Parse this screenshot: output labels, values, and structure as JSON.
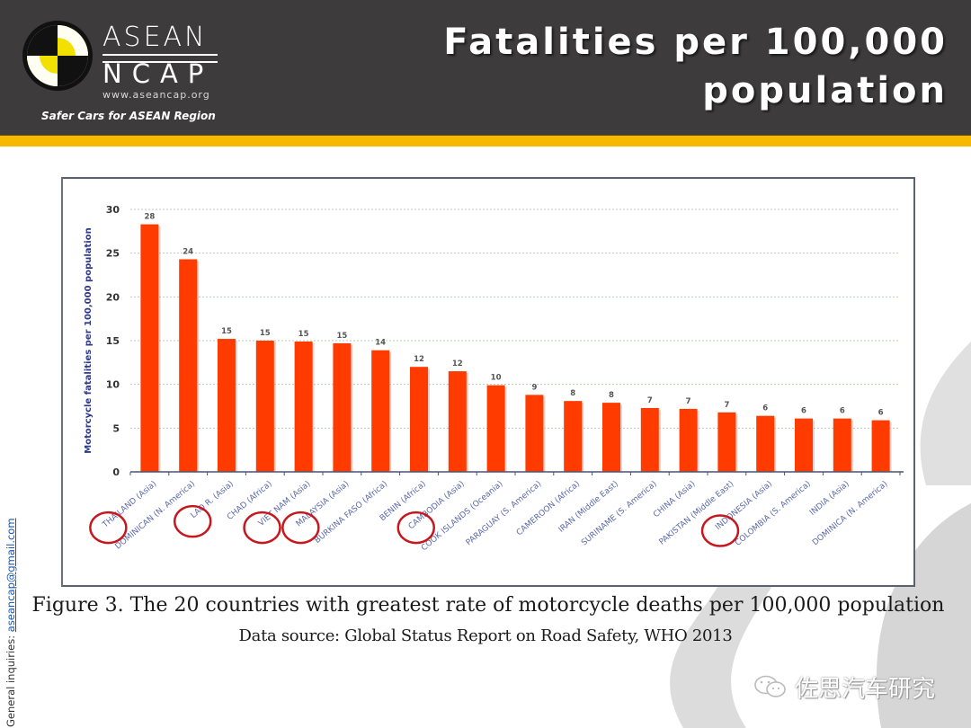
{
  "header": {
    "brand_top": "ASEAN",
    "brand_bottom": "NCAP",
    "brand_url": "www.aseancap.org",
    "tagline": "Safer Cars for ASEAN Region",
    "title_line1": "Fatalities per 100,000",
    "title_line2": "population"
  },
  "side_note": {
    "label": "General inquiries: ",
    "email": "aseancap@gmail.com"
  },
  "caption": "Figure 3. The 20 countries with greatest rate of motorcycle deaths per 100,000 population",
  "source": "Data source: Global Status Report on Road Safety, WHO 2013",
  "watermark": "佐思汽车研究",
  "colors": {
    "header_bg": "#3d3b3c",
    "accent_gold": "#f7b900",
    "bar": "#ff3b00",
    "circle_annotation": "#c8161d",
    "axis_text": "#2e3a87"
  },
  "chart_data": {
    "type": "bar",
    "title": "",
    "xlabel": "",
    "ylabel": "Motorcycle fatalities per 100,000 population",
    "ylim": [
      0,
      30
    ],
    "yticks": [
      0,
      5,
      10,
      15,
      20,
      25,
      30
    ],
    "grid": true,
    "categories": [
      "THAILAND (Asia)",
      "DOMINICAN (N. America)",
      "LAO R. (Asia)",
      "CHAD (Africa)",
      "VIET NAM (Asia)",
      "MALAYSIA (Asia)",
      "BURKINA FASO (Africa)",
      "BENIN (Africa)",
      "CAMBODIA (Asia)",
      "COOK ISLANDS (Oceania)",
      "PARAGUAY (S. America)",
      "CAMEROON (Africa)",
      "IRAN (Middle East)",
      "SURINAME (S. America)",
      "CHINA (Asia)",
      "PAKISTAN (Middle East)",
      "INDONESIA (Asia)",
      "COLOMBIA (S. America)",
      "INDIA (Asia)",
      "DOMINICA (N. America)"
    ],
    "values": [
      28.3,
      24.3,
      15.2,
      15.0,
      14.9,
      14.7,
      13.9,
      12.0,
      11.5,
      9.9,
      8.8,
      8.1,
      7.9,
      7.3,
      7.2,
      6.8,
      6.4,
      6.1,
      6.1,
      5.9
    ],
    "data_labels": [
      "28",
      "24",
      "15",
      "15",
      "15",
      "15",
      "14",
      "12",
      "12",
      "10",
      "9",
      "8",
      "8",
      "7",
      "7",
      "7",
      "6",
      "6",
      "6",
      "6"
    ],
    "highlighted": [
      "THAILAND (Asia)",
      "LAO R. (Asia)",
      "VIET NAM (Asia)",
      "MALAYSIA (Asia)",
      "CAMBODIA (Asia)",
      "INDONESIA (Asia)"
    ]
  }
}
